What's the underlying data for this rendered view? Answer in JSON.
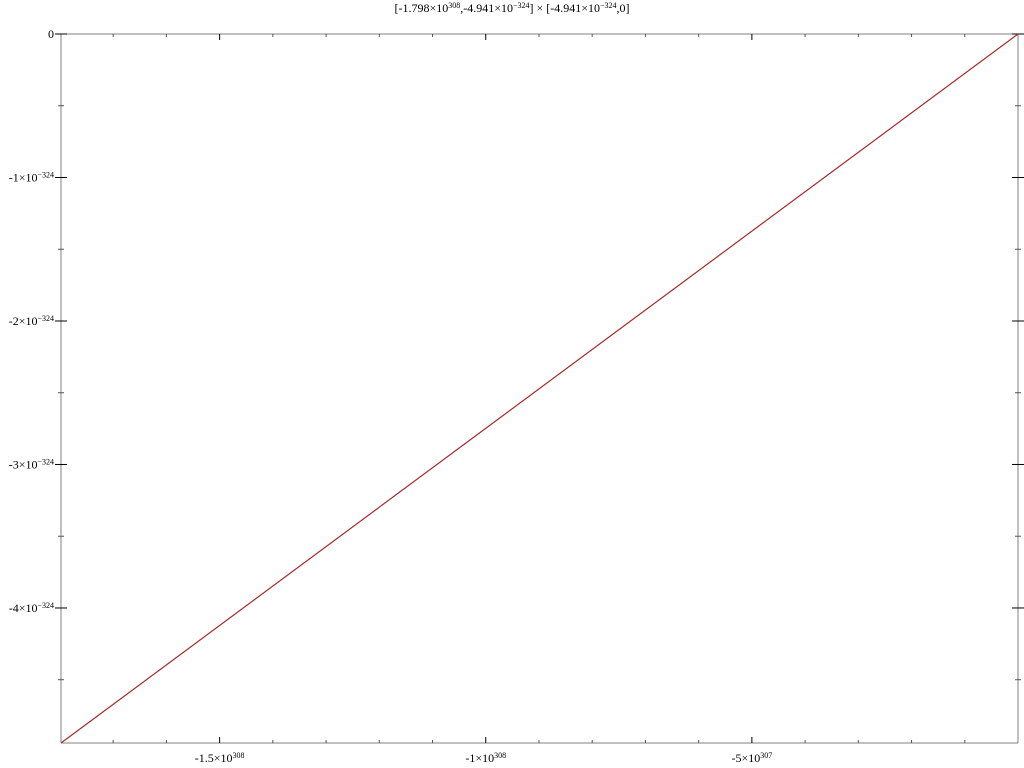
{
  "chart_data": {
    "type": "line",
    "title": "[-1.798×10³⁰⁸,-4.941×10⁻³²⁴] × [-4.941×10⁻³²⁴,0]",
    "title_parts": [
      {
        "text": "[-1.798×10",
        "sup": false
      },
      {
        "text": "308",
        "sup": true
      },
      {
        "text": ",-4.941×10",
        "sup": false
      },
      {
        "text": "−324",
        "sup": true
      },
      {
        "text": "] × [-4.941×10",
        "sup": false
      },
      {
        "text": "−324",
        "sup": true
      },
      {
        "text": ",0]",
        "sup": false
      }
    ],
    "xlabel": "",
    "ylabel": "",
    "x_unit_exponent": 308,
    "y_unit_exponent": -324,
    "xlim": [
      -1.798,
      -0.0
    ],
    "ylim": [
      -4.941,
      0
    ],
    "grid": false,
    "x_major_ticks": [
      {
        "value": -1.5,
        "mantissa": "-1.5",
        "exp": "308"
      },
      {
        "value": -1.0,
        "mantissa": "-1",
        "exp": "308"
      },
      {
        "value": -0.5,
        "mantissa": "-5",
        "exp": "307"
      }
    ],
    "x_minor_ticks": [
      -1.7,
      -1.6,
      -1.4,
      -1.3,
      -1.2,
      -1.1,
      -0.9,
      -0.8,
      -0.7,
      -0.6,
      -0.4,
      -0.3,
      -0.2,
      -0.1
    ],
    "y_major_ticks": [
      {
        "value": 0,
        "mantissa": "0",
        "exp": ""
      },
      {
        "value": -1,
        "mantissa": "-1",
        "exp": "−324"
      },
      {
        "value": -2,
        "mantissa": "-2",
        "exp": "−324"
      },
      {
        "value": -3,
        "mantissa": "-3",
        "exp": "−324"
      },
      {
        "value": -4,
        "mantissa": "-4",
        "exp": "−324"
      }
    ],
    "y_minor_ticks": [
      -0.5,
      -1.5,
      -2.5,
      -3.5,
      -4.5
    ],
    "series": [
      {
        "color": "#a52a2a",
        "x": [
          -1.798,
          0
        ],
        "y": [
          -4.941,
          0
        ]
      }
    ]
  }
}
